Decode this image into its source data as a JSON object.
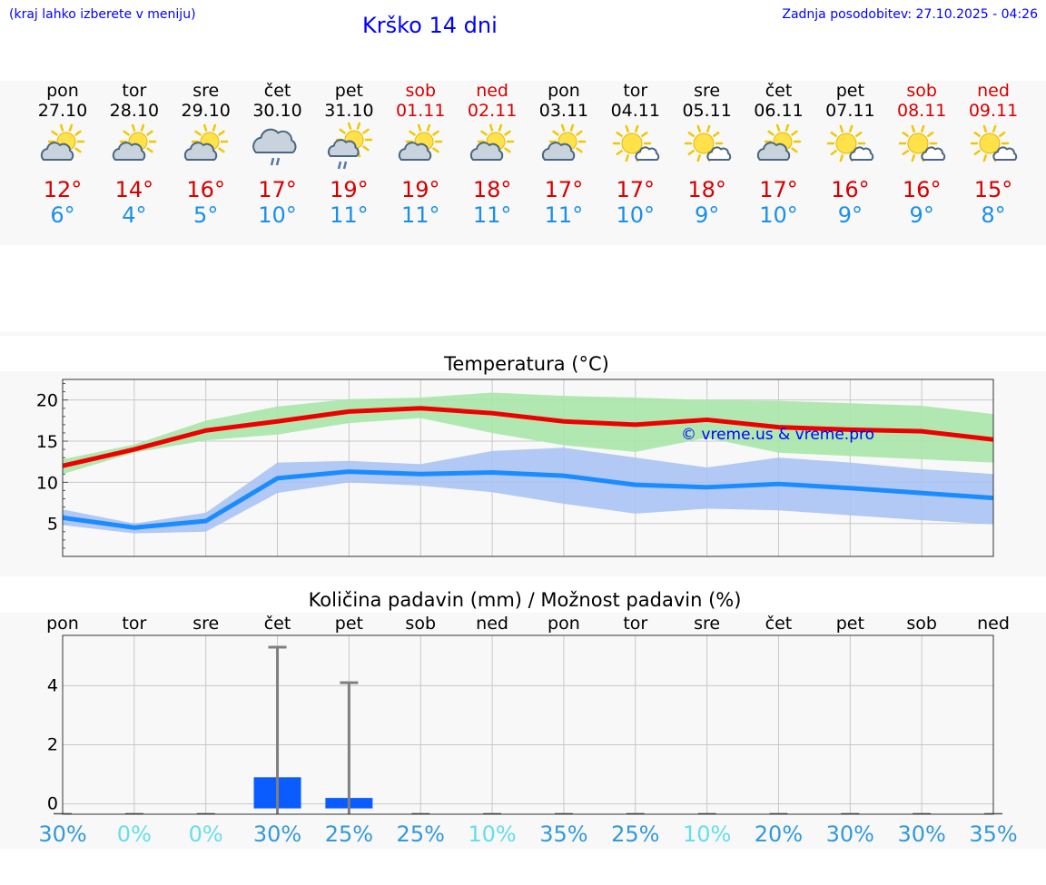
{
  "header": {
    "hint": "(kraj lahko izberete v meniju)",
    "title": "Krško 14 dni",
    "updated": "Zadnja posodobitev: 27.10.2025 - 04:26"
  },
  "days": [
    {
      "name": "pon",
      "date": "27.10",
      "weekend": false,
      "icon": "partly-cloudy-icon",
      "max": "12°",
      "min": "6°"
    },
    {
      "name": "tor",
      "date": "28.10",
      "weekend": false,
      "icon": "partly-cloudy-icon",
      "max": "14°",
      "min": "4°"
    },
    {
      "name": "sre",
      "date": "29.10",
      "weekend": false,
      "icon": "partly-cloudy-icon",
      "max": "16°",
      "min": "5°"
    },
    {
      "name": "čet",
      "date": "30.10",
      "weekend": false,
      "icon": "rain-cloud-icon",
      "max": "17°",
      "min": "10°"
    },
    {
      "name": "pet",
      "date": "31.10",
      "weekend": false,
      "icon": "sun-cloud-rain-icon",
      "max": "19°",
      "min": "11°"
    },
    {
      "name": "sob",
      "date": "01.11",
      "weekend": true,
      "icon": "partly-cloudy-icon",
      "max": "19°",
      "min": "11°"
    },
    {
      "name": "ned",
      "date": "02.11",
      "weekend": true,
      "icon": "partly-cloudy-icon",
      "max": "18°",
      "min": "11°"
    },
    {
      "name": "pon",
      "date": "03.11",
      "weekend": false,
      "icon": "partly-cloudy-icon",
      "max": "17°",
      "min": "11°"
    },
    {
      "name": "tor",
      "date": "04.11",
      "weekend": false,
      "icon": "mostly-sunny-icon",
      "max": "17°",
      "min": "10°"
    },
    {
      "name": "sre",
      "date": "05.11",
      "weekend": false,
      "icon": "mostly-sunny-icon",
      "max": "18°",
      "min": "9°"
    },
    {
      "name": "čet",
      "date": "06.11",
      "weekend": false,
      "icon": "partly-cloudy-icon",
      "max": "17°",
      "min": "10°"
    },
    {
      "name": "pet",
      "date": "07.11",
      "weekend": false,
      "icon": "mostly-sunny-icon",
      "max": "16°",
      "min": "9°"
    },
    {
      "name": "sob",
      "date": "08.11",
      "weekend": true,
      "icon": "mostly-sunny-icon",
      "max": "16°",
      "min": "9°"
    },
    {
      "name": "ned",
      "date": "09.11",
      "weekend": true,
      "icon": "mostly-sunny-icon",
      "max": "15°",
      "min": "8°"
    }
  ],
  "colors": {
    "max_line": "#ee0000",
    "max_band": "#a8e6a8",
    "min_line": "#1a8cff",
    "min_band": "#a9c3f3",
    "precip_bar": "#0a5cff",
    "error_bar": "#7f7f7f",
    "grid": "#c8c8c8",
    "pop_strong": "#3399dd",
    "pop_light": "#66ddee"
  },
  "chart_data": [
    {
      "type": "line",
      "title": "Temperatura (°C)",
      "x": [
        "27.10",
        "28.10",
        "29.10",
        "30.10",
        "31.10",
        "01.11",
        "02.11",
        "03.11",
        "04.11",
        "05.11",
        "06.11",
        "07.11",
        "08.11",
        "09.11"
      ],
      "ylim": [
        1,
        22.5
      ],
      "yticks": [
        5,
        10,
        15,
        20
      ],
      "series": [
        {
          "name": "max",
          "values": [
            12,
            14,
            16.3,
            17.4,
            18.6,
            19,
            18.4,
            17.4,
            17,
            17.6,
            16.7,
            16.4,
            16.2,
            15.2
          ],
          "band_low": [
            11,
            13.6,
            15.1,
            15.8,
            17.2,
            17.8,
            16,
            14.5,
            13.7,
            15.4,
            13.6,
            13.2,
            12.8,
            12.4
          ],
          "band_high": [
            12.8,
            14.6,
            17.5,
            19.2,
            20.1,
            20.3,
            20.9,
            20.5,
            20.3,
            20,
            19.9,
            19.6,
            19.3,
            18.3
          ]
        },
        {
          "name": "min",
          "values": [
            5.7,
            4.5,
            5.3,
            10.5,
            11.3,
            11,
            11.2,
            10.8,
            9.7,
            9.4,
            9.8,
            9.3,
            8.7,
            8.1
          ],
          "band_low": [
            4.8,
            3.8,
            4,
            8.7,
            10,
            9.6,
            8.8,
            7.4,
            6.2,
            6.8,
            6.6,
            6,
            5.4,
            4.9
          ],
          "band_high": [
            6.7,
            5,
            6.3,
            12.4,
            12.6,
            12.2,
            13.8,
            14.2,
            13,
            11.8,
            13,
            12.4,
            11.6,
            11
          ]
        }
      ],
      "watermark": "© vreme.us & vreme.pro"
    },
    {
      "type": "bar",
      "title": "Količina padavin (mm) / Možnost padavin (%)",
      "categories": [
        "pon",
        "tor",
        "sre",
        "čet",
        "pet",
        "sob",
        "ned",
        "pon",
        "tor",
        "sre",
        "čet",
        "pet",
        "sob",
        "ned"
      ],
      "values": [
        0,
        0,
        0,
        0.9,
        0.2,
        0,
        0,
        0,
        0,
        0,
        0,
        0,
        0,
        0
      ],
      "error_max": [
        0,
        0,
        0,
        5.3,
        4.1,
        0,
        0,
        0,
        0,
        0,
        0,
        0,
        0,
        0
      ],
      "ylim": [
        -0.35,
        5.7
      ],
      "yticks": [
        0,
        2,
        4
      ],
      "probability": [
        "30%",
        "0%",
        "0%",
        "30%",
        "25%",
        "25%",
        "10%",
        "35%",
        "25%",
        "10%",
        "20%",
        "30%",
        "30%",
        "35%"
      ]
    }
  ]
}
